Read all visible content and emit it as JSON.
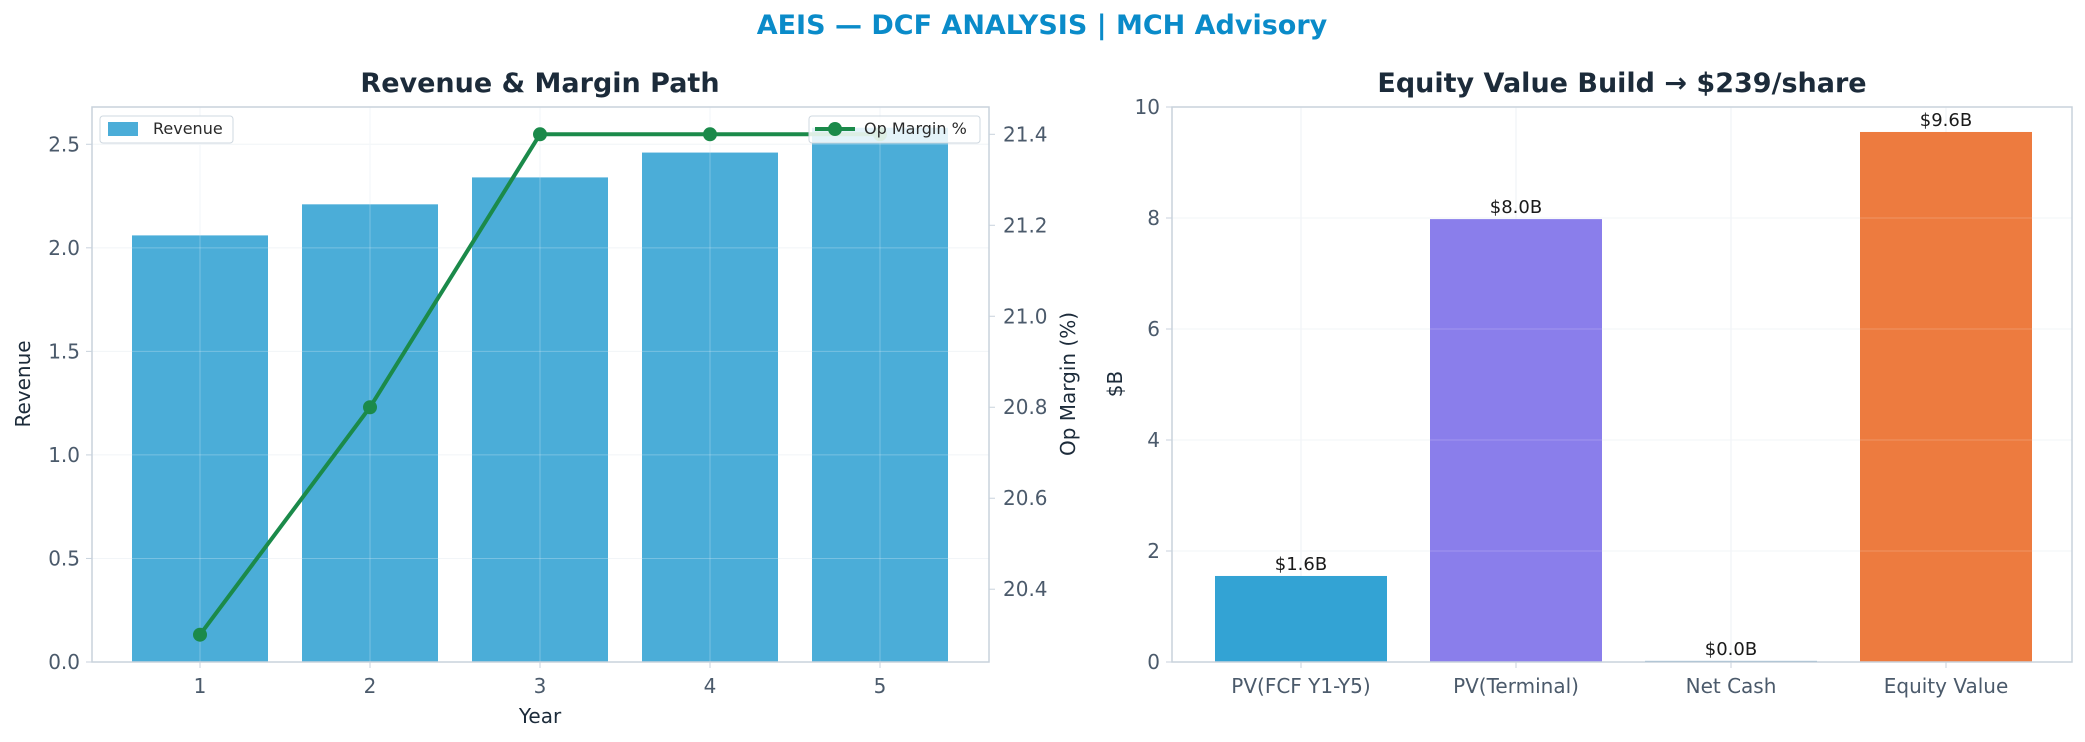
{
  "suptitle": "AEIS — DCF ANALYSIS | MCH Advisory",
  "colors": {
    "suptitle": "#0a8bc9",
    "revenue_bar": "#4badd8",
    "op_margin_line": "#1b8a4a",
    "axis_spine": "#c8d2dc",
    "grid": "#eef2f6"
  },
  "chart_data": [
    {
      "type": "bar",
      "title": "Revenue & Margin Path",
      "xlabel": "Year",
      "ylabel": "Revenue",
      "y2label": "Op Margin (%)",
      "categories": [
        "1",
        "2",
        "3",
        "4",
        "5"
      ],
      "ylim": [
        0,
        2.68
      ],
      "yticks": [
        "0.0",
        "0.5",
        "1.0",
        "1.5",
        "2.0",
        "2.5"
      ],
      "y2lim": [
        20.24,
        21.46
      ],
      "y2ticks": [
        "20.4",
        "20.6",
        "20.8",
        "21.0",
        "21.2",
        "21.4"
      ],
      "grid": true,
      "series": [
        {
          "name": "Revenue",
          "type": "bar",
          "axis": "left",
          "values": [
            2.06,
            2.21,
            2.34,
            2.46,
            2.58
          ]
        },
        {
          "name": "Op Margin %",
          "type": "line",
          "axis": "right",
          "values": [
            20.3,
            20.8,
            21.4,
            21.4,
            21.4
          ]
        }
      ],
      "legend": [
        {
          "label": "Revenue",
          "placement": "top-left"
        },
        {
          "label": "Op Margin %",
          "placement": "top-right"
        }
      ]
    },
    {
      "type": "bar",
      "title": "Equity Value Build → $239/share",
      "xlabel": "",
      "ylabel": "$B",
      "categories": [
        "PV(FCF Y1-Y5)",
        "PV(Terminal)",
        "Net Cash",
        "Equity Value"
      ],
      "values": [
        1.55,
        7.98,
        0.02,
        9.55
      ],
      "data_labels": [
        "$1.6B",
        "$8.0B",
        "$0.0B",
        "$9.6B"
      ],
      "bar_colors": [
        "#33a3d4",
        "#8a7eeb",
        "#6f9fbf",
        "#ed7b3f"
      ],
      "ylim": [
        0,
        10
      ],
      "yticks": [
        "0",
        "2",
        "4",
        "6",
        "8",
        "10"
      ],
      "grid": true
    }
  ]
}
